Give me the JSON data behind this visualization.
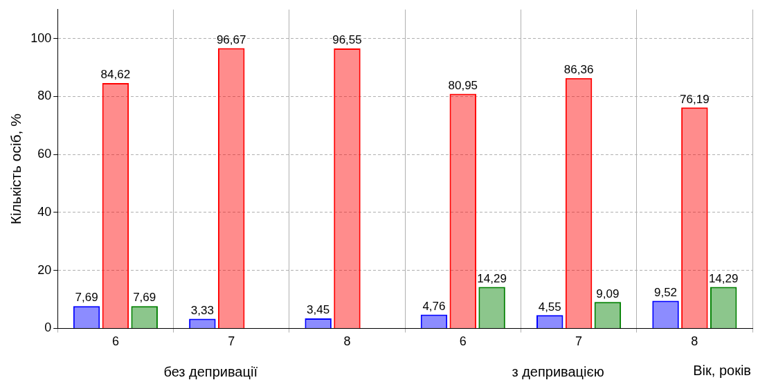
{
  "chart_data": {
    "type": "bar",
    "categories": [
      "6",
      "7",
      "8",
      "6",
      "7",
      "8"
    ],
    "series": [
      {
        "color": "#0000ff",
        "values": [
          7.69,
          3.33,
          3.45,
          4.76,
          4.55,
          9.52
        ],
        "value_labels": [
          "7,69",
          "3,33",
          "3,45",
          "4,76",
          "4,55",
          "9,52"
        ]
      },
      {
        "color": "#ff0000",
        "values": [
          84.62,
          96.67,
          96.55,
          80.95,
          86.36,
          76.19
        ],
        "value_labels": [
          "84,62",
          "96,67",
          "96,55",
          "80,95",
          "86,36",
          "76,19"
        ]
      },
      {
        "color": "#008000",
        "values": [
          7.69,
          null,
          null,
          14.29,
          9.09,
          14.29
        ],
        "value_labels": [
          "7,69",
          null,
          null,
          "14,29",
          "9,09",
          "14,29"
        ]
      }
    ],
    "ylim": [
      0,
      110
    ],
    "yticks": [
      0,
      20,
      40,
      60,
      80,
      100
    ],
    "grid": true,
    "legend": false,
    "ylabel": "Кількість осіб, %",
    "xlabel": "Вік, років",
    "annotations": [
      "без депривації",
      "з депривацією"
    ]
  }
}
